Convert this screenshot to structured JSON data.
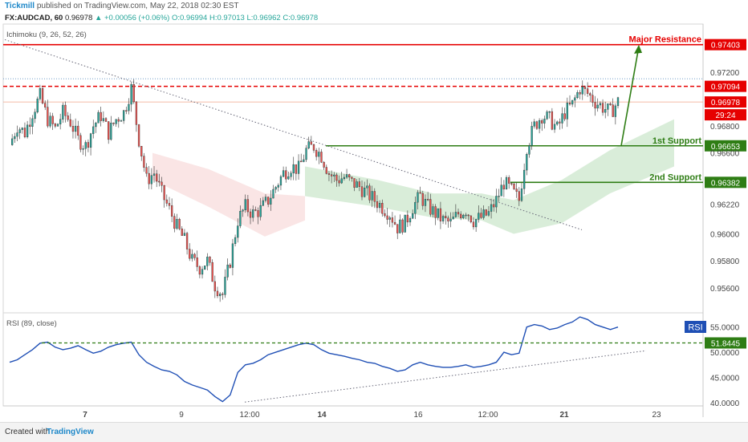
{
  "header": {
    "brand": "Tickmill",
    "published": "published on TradingView.com, May 22, 2018 02:30 EST"
  },
  "symbol_line": {
    "symbol": "FX:AUDCAD, 60",
    "last": "0.96978",
    "change": "+0.00056 (+0.06%)",
    "ohlc": "O:0.96994 H:0.97013 L:0.96962 C:0.96978"
  },
  "indicators": {
    "ichimoku": "Ichimoku (9, 26, 52, 26)",
    "rsi": "RSI (89, close)",
    "rsi_badge": "RSI"
  },
  "footer": {
    "created": "Created with",
    "brand": "TradingView"
  },
  "colors": {
    "bull": "#26a69a",
    "bear": "#ef5350",
    "resistance": "#e60000",
    "support": "#2e7d14",
    "rsi_line": "#1f4fb5",
    "cloud_green": "#cfe9cf",
    "cloud_red": "#f9dede"
  },
  "chart_data": [
    {
      "type": "candlestick",
      "title": "",
      "ylim": [
        0.9545,
        0.9752
      ],
      "y_ticks": [
        "0.97200",
        "0.96800",
        "0.96600",
        "0.96220",
        "0.96000",
        "0.95800",
        "0.95600"
      ],
      "x_ticks": [
        "7",
        "9",
        "12:00",
        "14",
        "16",
        "12:00",
        "21",
        "23"
      ],
      "price_path": [
        0.9666,
        0.968,
        0.9675,
        0.969,
        0.9702,
        0.9685,
        0.9678,
        0.969,
        0.9683,
        0.967,
        0.9665,
        0.968,
        0.9688,
        0.9675,
        0.9685,
        0.969,
        0.9708,
        0.967,
        0.964,
        0.9645,
        0.963,
        0.9618,
        0.9605,
        0.9595,
        0.958,
        0.9575,
        0.958,
        0.9562,
        0.9555,
        0.958,
        0.961,
        0.962,
        0.9615,
        0.9618,
        0.9625,
        0.9635,
        0.9645,
        0.965,
        0.9648,
        0.9662,
        0.9665,
        0.9658,
        0.9645,
        0.964,
        0.9642,
        0.9638,
        0.9635,
        0.963,
        0.9625,
        0.962,
        0.9615,
        0.9605,
        0.9608,
        0.962,
        0.9628,
        0.962,
        0.9615,
        0.961,
        0.9608,
        0.9615,
        0.9618,
        0.961,
        0.9612,
        0.9615,
        0.9625,
        0.9638,
        0.9632,
        0.9625,
        0.9665,
        0.968,
        0.9688,
        0.9685,
        0.9678,
        0.969,
        0.9696,
        0.9708,
        0.9704,
        0.9698,
        0.9694,
        0.969,
        0.9698
      ],
      "levels": [
        {
          "label": "Major Resistance",
          "value": 0.97403,
          "tag": "0.97403",
          "style": "solid"
        },
        {
          "label": "",
          "value": 0.97094,
          "tag": "0.97094",
          "style": "dashed"
        },
        {
          "label": "",
          "value": 0.96978,
          "tag": "0.96978",
          "style": "current"
        },
        {
          "label": "",
          "value": 0.9715,
          "tag": "",
          "style": "dotted"
        },
        {
          "label": "1st Support",
          "value": 0.96653,
          "tag": "0.96653",
          "style": "solid"
        },
        {
          "label": "2nd Support",
          "value": 0.96382,
          "tag": "0.96382",
          "style": "solid"
        }
      ],
      "countdown": "29:24"
    },
    {
      "type": "line",
      "title": "RSI (89, close)",
      "ylim": [
        39.5,
        57.5
      ],
      "y_ticks": [
        "55.0000",
        "50.0000",
        "45.0000",
        "40.0000"
      ],
      "values": [
        48,
        48.5,
        49.5,
        50.5,
        51.8,
        52,
        51,
        50.5,
        50.8,
        51.3,
        50.5,
        49.8,
        50.2,
        51,
        51.5,
        51.8,
        52,
        49.5,
        48,
        47.2,
        46.5,
        46.2,
        45.5,
        44.2,
        43.5,
        43,
        42.5,
        41.2,
        40.2,
        41.5,
        46,
        47.5,
        47.8,
        48.5,
        49.5,
        50,
        50.5,
        51,
        51.5,
        51.8,
        51.5,
        50.5,
        49.8,
        49.5,
        49.2,
        48.8,
        48.5,
        48,
        47.8,
        47.2,
        46.8,
        46.2,
        46.5,
        47.5,
        48,
        47.5,
        47.2,
        47,
        47,
        47.2,
        47.5,
        47,
        47.2,
        47.5,
        48,
        50,
        49.5,
        49.8,
        55,
        55.5,
        55.2,
        54.5,
        54.8,
        55.5,
        56,
        57,
        56.5,
        55.5,
        55,
        54.5,
        55
      ],
      "levels": [
        {
          "label": "",
          "value": 51.8445,
          "tag": "51.8445"
        }
      ]
    }
  ]
}
